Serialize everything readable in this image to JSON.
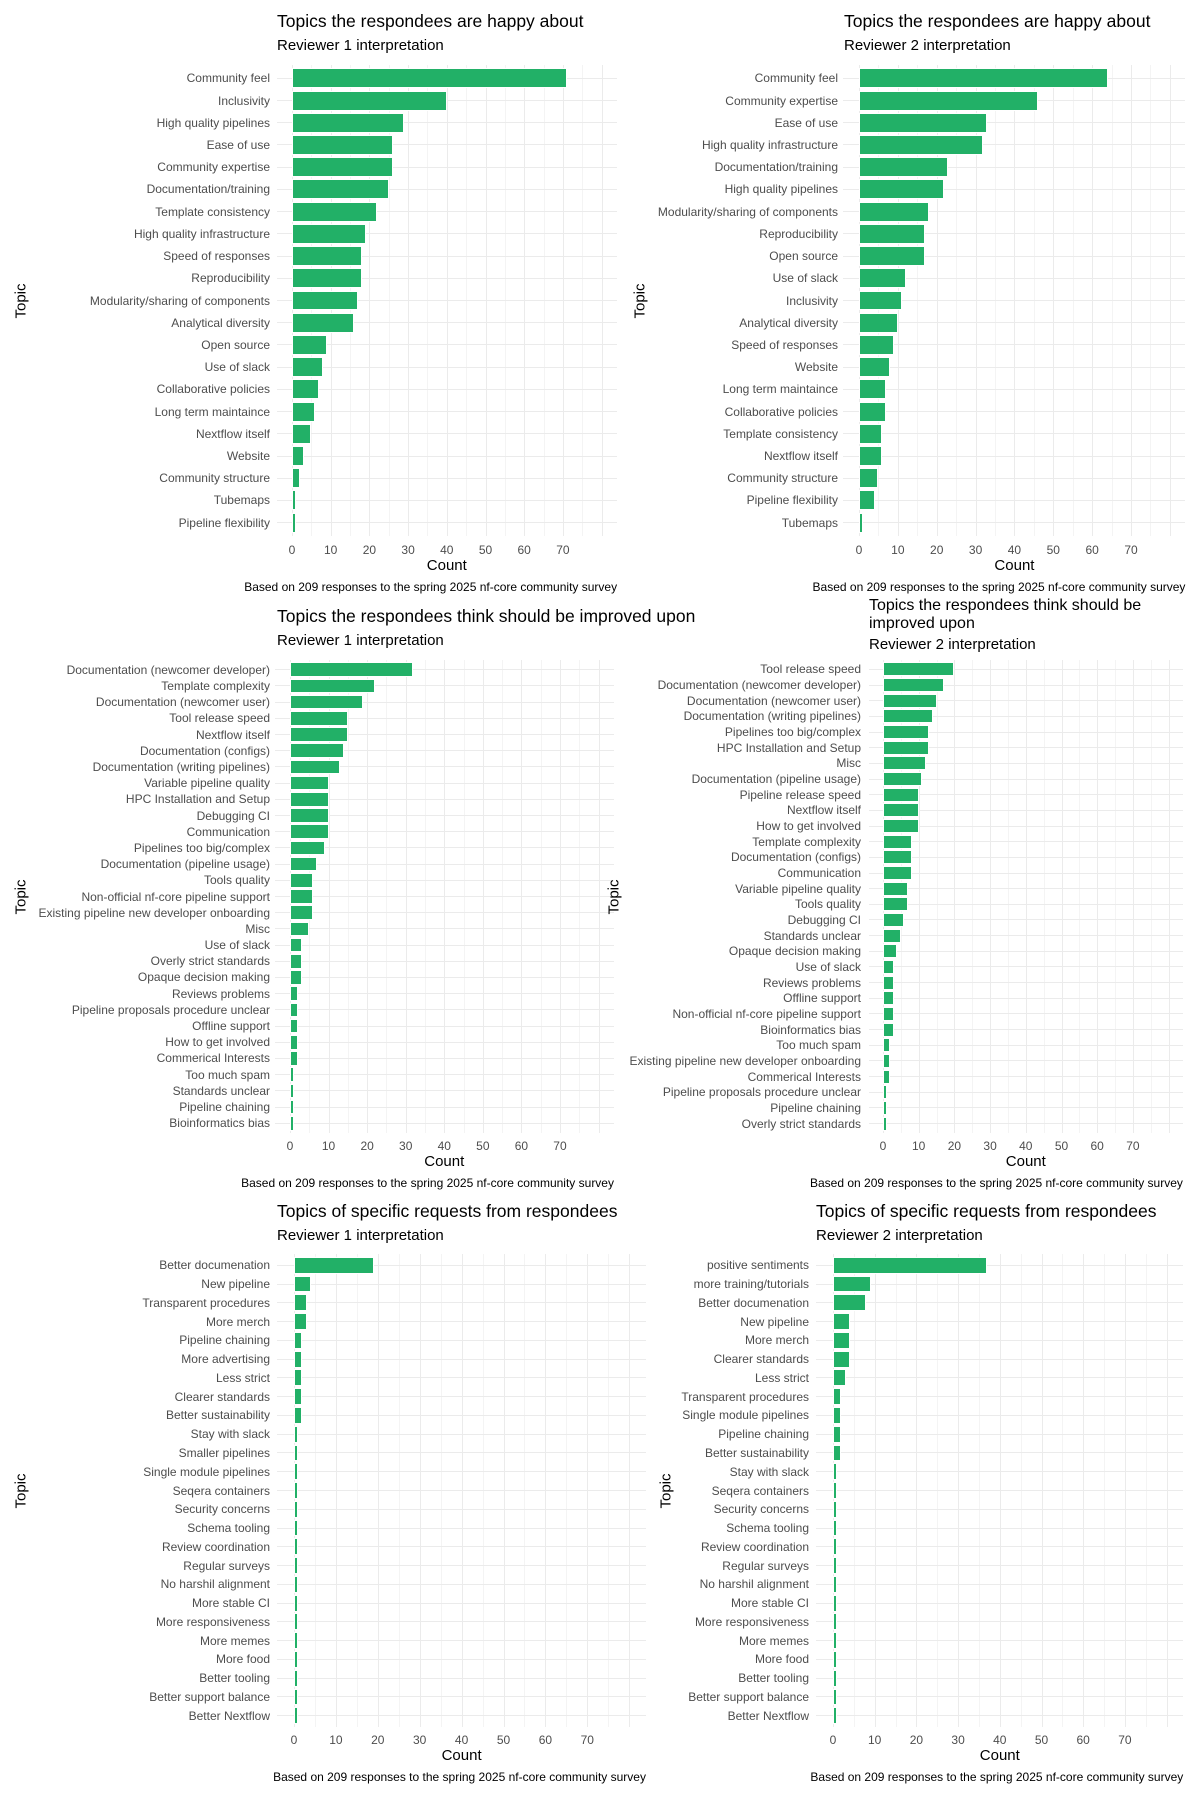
{
  "colors": {
    "bar": "#22b067",
    "grid": "#ebebeb"
  },
  "chart_data": [
    {
      "type": "bar",
      "orientation": "horizontal",
      "title": "Topics the respondees are happy about",
      "subtitle": "Reviewer 1 interpretation",
      "xlabel": "Count",
      "ylabel": "Topic",
      "caption": "Based on 209 responses to the spring 2025 nf-core community survey",
      "xlim": [
        0,
        80
      ],
      "xticks": [
        "0",
        "10",
        "20",
        "30",
        "40",
        "50",
        "60",
        "70"
      ],
      "grid": true,
      "categories": [
        "Community feel",
        "Inclusivity",
        "High quality pipelines",
        "Ease of use",
        "Community expertise",
        "Documentation/training",
        "Template consistency",
        "High quality infrastructure",
        "Speed of responses",
        "Reproducibility",
        "Modularity/sharing of components",
        "Analytical diversity",
        "Open source",
        "Use of slack",
        "Collaborative policies",
        "Long term maintaince",
        "Nextflow itself",
        "Website",
        "Community structure",
        "Tubemaps",
        "Pipeline flexibility"
      ],
      "values": [
        71,
        40,
        29,
        26,
        26,
        25,
        22,
        19,
        18,
        18,
        17,
        16,
        9,
        8,
        7,
        6,
        5,
        3,
        2,
        1,
        1
      ]
    },
    {
      "type": "bar",
      "orientation": "horizontal",
      "title": "Topics the respondees are happy about",
      "subtitle": "Reviewer 2 interpretation",
      "xlabel": "Count",
      "ylabel": "Topic",
      "caption": "Based on 209 responses to the spring 2025 nf-core community survey",
      "xlim": [
        0,
        80
      ],
      "xticks": [
        "0",
        "10",
        "20",
        "30",
        "40",
        "50",
        "60",
        "70"
      ],
      "grid": true,
      "categories": [
        "Community feel",
        "Community expertise",
        "Ease of use",
        "High quality infrastructure",
        "Documentation/training",
        "High quality pipelines",
        "Modularity/sharing of components",
        "Reproducibility",
        "Open source",
        "Use of slack",
        "Inclusivity",
        "Analytical diversity",
        "Speed of responses",
        "Website",
        "Long term maintaince",
        "Collaborative policies",
        "Template consistency",
        "Nextflow itself",
        "Community structure",
        "Pipeline flexibility",
        "Tubemaps"
      ],
      "values": [
        64,
        46,
        33,
        32,
        23,
        22,
        18,
        17,
        17,
        12,
        11,
        10,
        9,
        8,
        7,
        7,
        6,
        6,
        5,
        4,
        1
      ]
    },
    {
      "type": "bar",
      "orientation": "horizontal",
      "title": "Topics the respondees think should be improved upon",
      "subtitle": "Reviewer 1 interpretation",
      "xlabel": "Count",
      "ylabel": "Topic",
      "caption": "Based on 209 responses to the spring 2025 nf-core community survey",
      "xlim": [
        0,
        80
      ],
      "xticks": [
        "0",
        "10",
        "20",
        "30",
        "40",
        "50",
        "60",
        "70"
      ],
      "grid": true,
      "categories": [
        "Documentation (newcomer developer)",
        "Template complexity",
        "Documentation (newcomer user)",
        "Tool release speed",
        "Nextflow itself",
        "Documentation (configs)",
        "Documentation (writing pipelines)",
        "Variable pipeline quality",
        "HPC Installation and Setup",
        "Debugging CI",
        "Communication",
        "Pipelines too big/complex",
        "Documentation (pipeline usage)",
        "Tools quality",
        "Non-official nf-core pipeline support",
        "Existing pipeline new developer onboarding",
        "Misc",
        "Use of slack",
        "Overly strict standards",
        "Opaque decision making",
        "Reviews problems",
        "Pipeline proposals procedure unclear",
        "Offline support",
        "How to get involved",
        "Commerical Interests",
        "Too much spam",
        "Standards unclear",
        "Pipeline chaining",
        "Bioinformatics bias"
      ],
      "values": [
        32,
        22,
        19,
        15,
        15,
        14,
        13,
        10,
        10,
        10,
        10,
        9,
        7,
        6,
        6,
        6,
        5,
        3,
        3,
        3,
        2,
        2,
        2,
        2,
        2,
        1,
        1,
        1,
        1
      ]
    },
    {
      "type": "bar",
      "orientation": "horizontal",
      "title": "Topics the respondees think should be improved upon",
      "subtitle": "Reviewer 2 interpretation",
      "xlabel": "Count",
      "ylabel": "Topic",
      "caption": "Based on 209 responses to the spring 2025 nf-core community survey",
      "xlim": [
        0,
        80
      ],
      "xticks": [
        "0",
        "10",
        "20",
        "30",
        "40",
        "50",
        "60",
        "70"
      ],
      "grid": true,
      "categories": [
        "Tool release speed",
        "Documentation (newcomer developer)",
        "Documentation (newcomer user)",
        "Documentation (writing pipelines)",
        "Pipelines too big/complex",
        "HPC Installation and Setup",
        "Misc",
        "Documentation (pipeline usage)",
        "Pipeline release speed",
        "Nextflow itself",
        "How to get involved",
        "Template complexity",
        "Documentation (configs)",
        "Communication",
        "Variable pipeline quality",
        "Tools quality",
        "Debugging CI",
        "Standards unclear",
        "Opaque decision making",
        "Use of slack",
        "Reviews problems",
        "Offline support",
        "Non-official nf-core pipeline support",
        "Bioinformatics bias",
        "Too much spam",
        "Existing pipeline new developer onboarding",
        "Commerical Interests",
        "Pipeline proposals procedure unclear",
        "Pipeline chaining",
        "Overly strict standards"
      ],
      "values": [
        20,
        17,
        15,
        14,
        13,
        13,
        12,
        11,
        10,
        10,
        10,
        8,
        8,
        8,
        7,
        7,
        6,
        5,
        4,
        3,
        3,
        3,
        3,
        3,
        2,
        2,
        2,
        1,
        1,
        1
      ]
    },
    {
      "type": "bar",
      "orientation": "horizontal",
      "title": "Topics of specific requests from respondees",
      "subtitle": "Reviewer 1 interpretation",
      "xlabel": "Count",
      "ylabel": "Topic",
      "caption": "Based on 209 responses to the spring 2025 nf-core community survey",
      "xlim": [
        0,
        80
      ],
      "xticks": [
        "0",
        "10",
        "20",
        "30",
        "40",
        "50",
        "60",
        "70"
      ],
      "grid": true,
      "categories": [
        "Better documenation",
        "New pipeline",
        "Transparent procedures",
        "More merch",
        "Pipeline chaining",
        "More advertising",
        "Less strict",
        "Clearer standards",
        "Better sustainability",
        "Stay with slack",
        "Smaller pipelines",
        "Single module pipelines",
        "Seqera containers",
        "Security concerns",
        "Schema tooling",
        "Review coordination",
        "Regular surveys",
        "No harshil alignment",
        "More stable CI",
        "More responsiveness",
        "More memes",
        "More food",
        "Better tooling",
        "Better support balance",
        "Better Nextflow"
      ],
      "values": [
        19,
        4,
        3,
        3,
        2,
        2,
        2,
        2,
        2,
        1,
        1,
        1,
        1,
        1,
        1,
        1,
        1,
        1,
        1,
        1,
        1,
        1,
        1,
        1,
        1
      ]
    },
    {
      "type": "bar",
      "orientation": "horizontal",
      "title": "Topics of specific requests from respondees",
      "subtitle": "Reviewer 2 interpretation",
      "xlabel": "Count",
      "ylabel": "Topic",
      "caption": "Based on 209 responses to the spring 2025 nf-core community survey",
      "xlim": [
        0,
        80
      ],
      "xticks": [
        "0",
        "10",
        "20",
        "30",
        "40",
        "50",
        "60",
        "70"
      ],
      "grid": true,
      "categories": [
        "positive sentiments",
        "more training/tutorials",
        "Better documenation",
        "New pipeline",
        "More merch",
        "Clearer standards",
        "Less strict",
        "Transparent procedures",
        "Single module pipelines",
        "Pipeline chaining",
        "Better sustainability",
        "Stay with slack",
        "Seqera containers",
        "Security concerns",
        "Schema tooling",
        "Review coordination",
        "Regular surveys",
        "No harshil alignment",
        "More stable CI",
        "More responsiveness",
        "More memes",
        "More food",
        "Better tooling",
        "Better support balance",
        "Better Nextflow"
      ],
      "values": [
        37,
        9,
        8,
        4,
        4,
        4,
        3,
        2,
        2,
        2,
        2,
        1,
        1,
        1,
        1,
        1,
        1,
        1,
        1,
        1,
        1,
        1,
        1,
        1,
        1
      ]
    }
  ]
}
